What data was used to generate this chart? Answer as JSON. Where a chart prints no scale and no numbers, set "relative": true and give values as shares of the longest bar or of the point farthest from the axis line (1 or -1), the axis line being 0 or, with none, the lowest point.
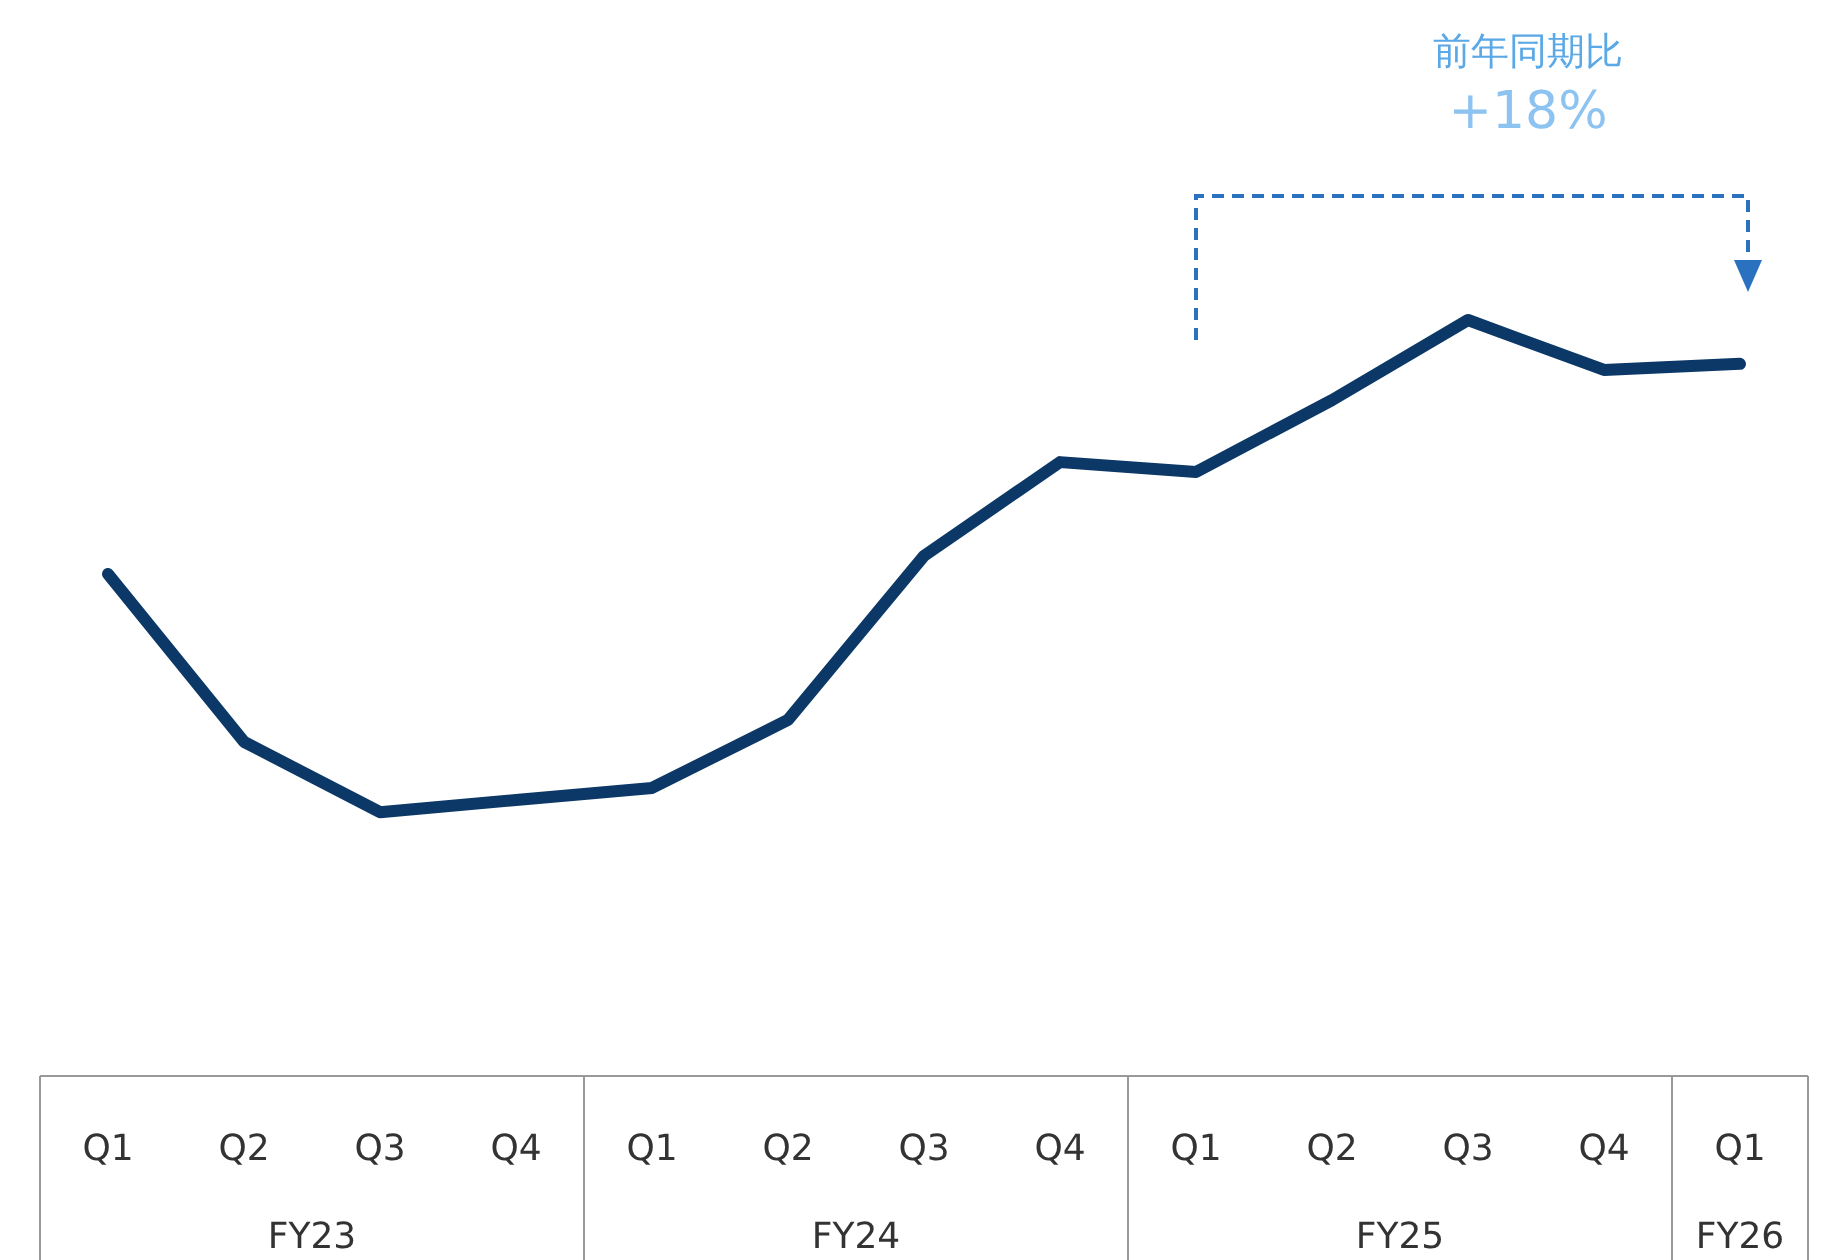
{
  "chart_data": {
    "type": "line",
    "relative": true,
    "categories": [
      "Q1",
      "Q2",
      "Q3",
      "Q4",
      "Q1",
      "Q2",
      "Q3",
      "Q4",
      "Q1",
      "Q2",
      "Q3",
      "Q4",
      "Q1"
    ],
    "series": [
      {
        "color": "#0b3866",
        "values": [
          0.664,
          0.442,
          0.349,
          0.365,
          0.381,
          0.471,
          0.688,
          0.812,
          0.799,
          0.894,
          1,
          0.934,
          0.942
        ]
      }
    ],
    "annotations": [
      "FY23",
      "FY24",
      "FY25",
      "FY26",
      "前年同期比",
      "+18%"
    ],
    "grid": false,
    "marker": "none",
    "line_style": "solid"
  }
}
